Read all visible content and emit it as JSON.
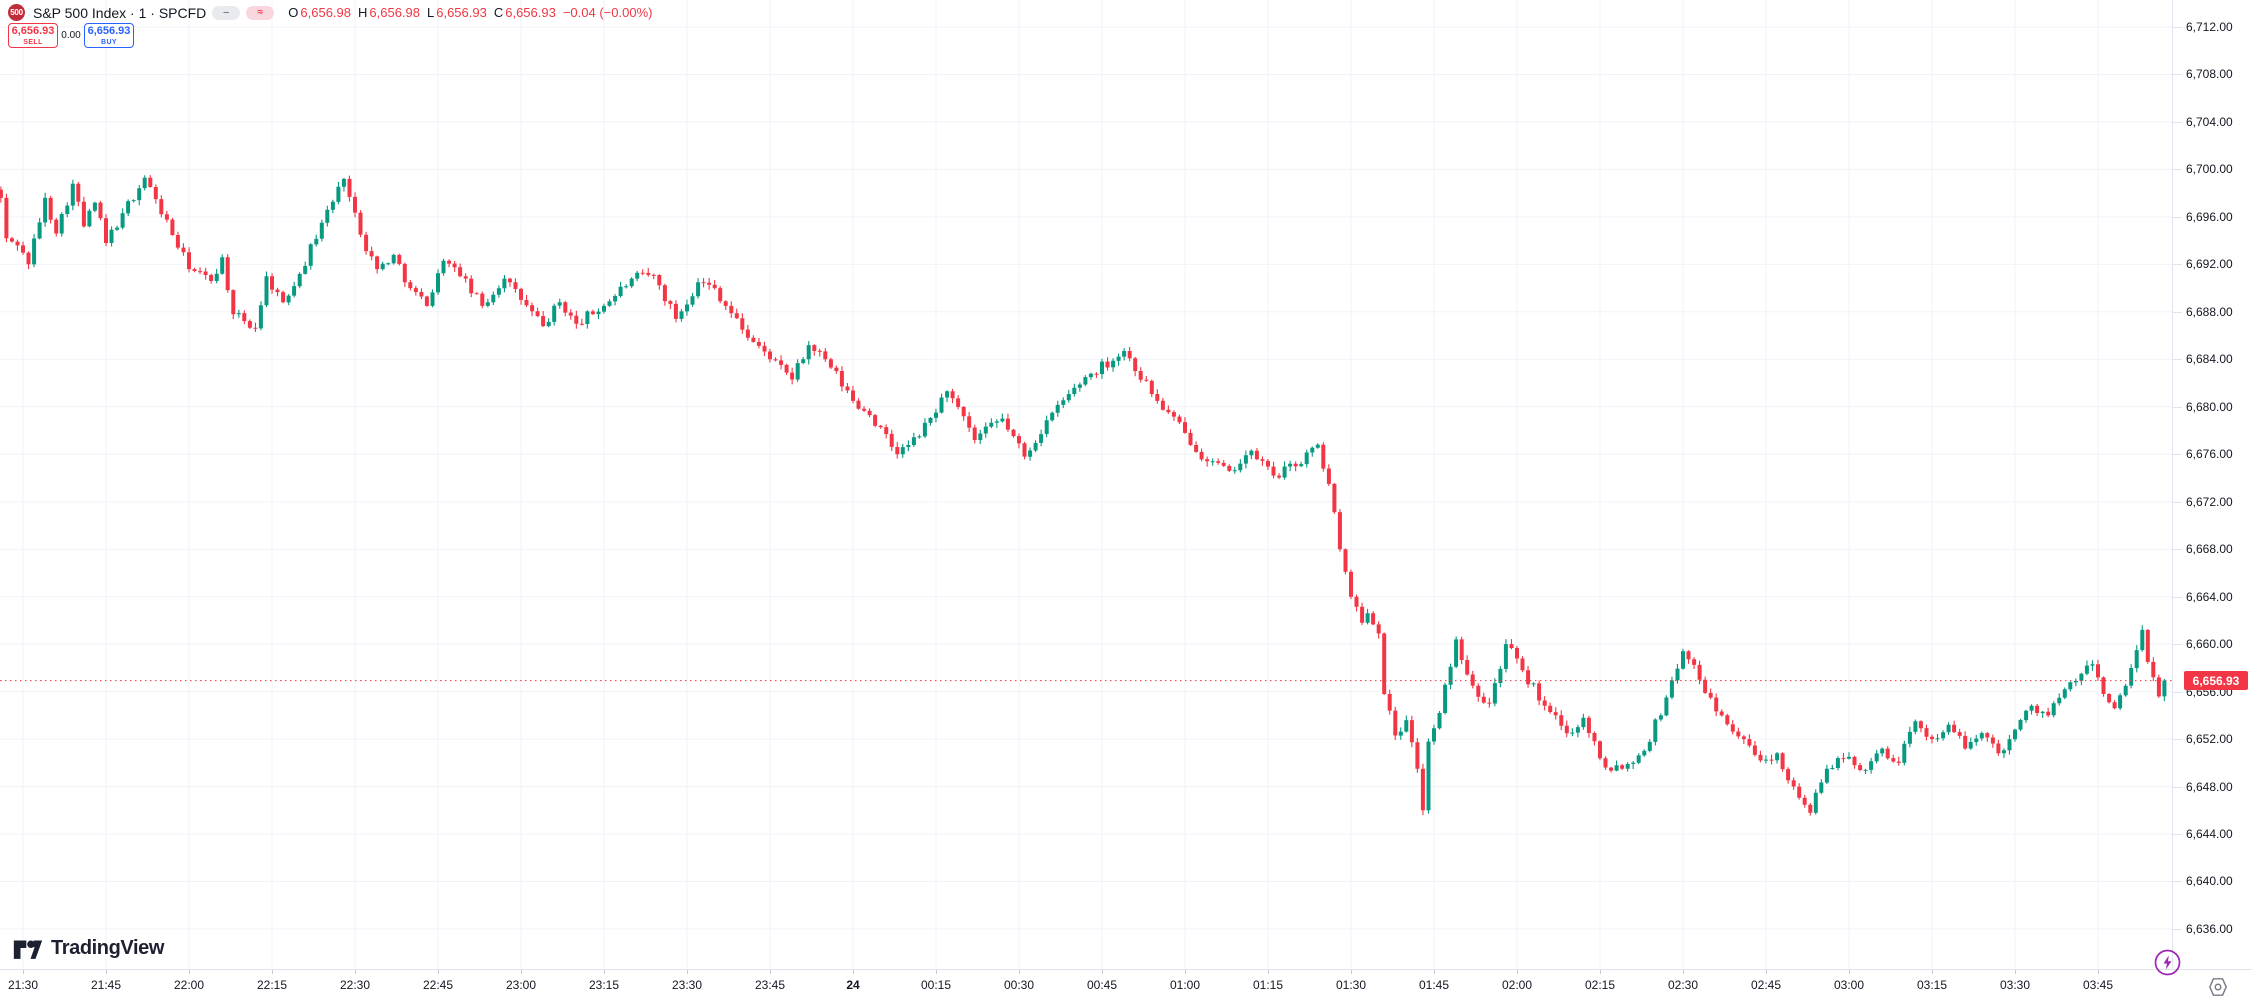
{
  "header": {
    "symbol_badge": "500",
    "title": "S&P 500 Index · 1 · SPCFD",
    "chips": [
      {
        "name": "dash-chip",
        "label": "‒"
      },
      {
        "name": "approx-chip",
        "label": "≈"
      }
    ],
    "ohlc": [
      {
        "label": "O",
        "value": "6,656.98"
      },
      {
        "label": "H",
        "value": "6,656.98"
      },
      {
        "label": "L",
        "value": "6,656.93"
      },
      {
        "label": "C",
        "value": "6,656.93"
      }
    ],
    "change": "−0.04 (−0.00%)"
  },
  "trade_panel": {
    "sell_price": "6,656.93",
    "sell_label": "SELL",
    "spread": "0.00",
    "buy_price": "6,656.93",
    "buy_label": "BUY"
  },
  "watermark": {
    "brand": "TradingView"
  },
  "colors": {
    "up": "#089981",
    "down": "#f23645",
    "buy_blue": "#2962ff",
    "sell_red": "#f23645",
    "grid": "#f0f3fa",
    "axis_border": "#e0e3eb",
    "text": "#131722",
    "muted": "#787b86",
    "badge_red": "#bf2d3a",
    "lightning_purple": "#9c27b0",
    "last_price_bg": "#f23645"
  },
  "chart_data": {
    "type": "candlestick",
    "symbol": "SPCFD",
    "interval_minutes": 1,
    "title": "S&P 500 Index 1-minute candles",
    "last_price": 6656.93,
    "last_price_label": "6,656.93",
    "first_open": 6698.3,
    "candle_count": 392,
    "grid": true,
    "price_axis": {
      "tick_step": 4,
      "ticks": [
        6636,
        6640,
        6644,
        6648,
        6652,
        6656,
        6660,
        6664,
        6668,
        6672,
        6676,
        6680,
        6684,
        6688,
        6692,
        6696,
        6700,
        6704,
        6708,
        6712
      ],
      "visible_range": [
        6633.7,
        6714.3
      ]
    },
    "time_axis": {
      "start_time": "21:26",
      "end_time": "03:57",
      "labels": [
        {
          "m": 4,
          "t": "21:30"
        },
        {
          "m": 19,
          "t": "21:45"
        },
        {
          "m": 34,
          "t": "22:00"
        },
        {
          "m": 49,
          "t": "22:15"
        },
        {
          "m": 64,
          "t": "22:30"
        },
        {
          "m": 79,
          "t": "22:45"
        },
        {
          "m": 94,
          "t": "23:00"
        },
        {
          "m": 109,
          "t": "23:15"
        },
        {
          "m": 124,
          "t": "23:30"
        },
        {
          "m": 139,
          "t": "23:45"
        },
        {
          "m": 154,
          "t": "24",
          "bold": true
        },
        {
          "m": 169,
          "t": "00:15"
        },
        {
          "m": 184,
          "t": "00:30"
        },
        {
          "m": 199,
          "t": "00:45"
        },
        {
          "m": 214,
          "t": "01:00"
        },
        {
          "m": 229,
          "t": "01:15"
        },
        {
          "m": 244,
          "t": "01:30"
        },
        {
          "m": 259,
          "t": "01:45"
        },
        {
          "m": 274,
          "t": "02:00"
        },
        {
          "m": 289,
          "t": "02:15"
        },
        {
          "m": 304,
          "t": "02:30"
        },
        {
          "m": 319,
          "t": "02:45"
        },
        {
          "m": 334,
          "t": "03:00"
        },
        {
          "m": 349,
          "t": "03:15"
        },
        {
          "m": 364,
          "t": "03:30"
        },
        {
          "m": 379,
          "t": "03:45"
        }
      ]
    },
    "waypoints": [
      [
        0,
        6697.6
      ],
      [
        1,
        6694.2
      ],
      [
        3,
        6693.6
      ],
      [
        5,
        6692.0
      ],
      [
        8,
        6697.6
      ],
      [
        10,
        6694.6
      ],
      [
        13,
        6698.8
      ],
      [
        15,
        6695.2
      ],
      [
        17,
        6697.2
      ],
      [
        19,
        6693.8
      ],
      [
        22,
        6696.3
      ],
      [
        26,
        6699.3
      ],
      [
        28,
        6697.5
      ],
      [
        34,
        6691.6
      ],
      [
        38,
        6690.6
      ],
      [
        40,
        6692.6
      ],
      [
        42,
        6687.8
      ],
      [
        46,
        6686.6
      ],
      [
        48,
        6691.0
      ],
      [
        51,
        6688.8
      ],
      [
        54,
        6691.2
      ],
      [
        58,
        6695.5
      ],
      [
        62,
        6699.2
      ],
      [
        65,
        6694.5
      ],
      [
        68,
        6691.6
      ],
      [
        71,
        6692.8
      ],
      [
        74,
        6690.0
      ],
      [
        77,
        6688.5
      ],
      [
        80,
        6692.3
      ],
      [
        83,
        6691.0
      ],
      [
        87,
        6688.5
      ],
      [
        91,
        6690.8
      ],
      [
        94,
        6689.0
      ],
      [
        98,
        6686.8
      ],
      [
        101,
        6688.8
      ],
      [
        104,
        6687.0
      ],
      [
        109,
        6688.5
      ],
      [
        114,
        6690.8
      ],
      [
        118,
        6691.1
      ],
      [
        122,
        6687.4
      ],
      [
        126,
        6690.5
      ],
      [
        129,
        6690.0
      ],
      [
        134,
        6686.5
      ],
      [
        139,
        6684.0
      ],
      [
        143,
        6682.3
      ],
      [
        146,
        6685.2
      ],
      [
        149,
        6684.0
      ],
      [
        154,
        6680.5
      ],
      [
        157,
        6679.3
      ],
      [
        162,
        6676.0
      ],
      [
        166,
        6677.5
      ],
      [
        171,
        6681.3
      ],
      [
        176,
        6677.2
      ],
      [
        181,
        6679.0
      ],
      [
        185,
        6675.8
      ],
      [
        190,
        6679.5
      ],
      [
        196,
        6682.5
      ],
      [
        203,
        6684.7
      ],
      [
        209,
        6680.5
      ],
      [
        214,
        6677.8
      ],
      [
        218,
        6675.4
      ],
      [
        222,
        6674.6
      ],
      [
        226,
        6676.3
      ],
      [
        230,
        6674.2
      ],
      [
        234,
        6675.0
      ],
      [
        238,
        6676.8
      ],
      [
        240,
        6673.5
      ],
      [
        242,
        6668.0
      ],
      [
        244,
        6664.0
      ],
      [
        246,
        6661.8
      ],
      [
        247,
        6662.6
      ],
      [
        249,
        6660.9
      ],
      [
        250,
        6655.8
      ],
      [
        252,
        6652.3
      ],
      [
        254,
        6653.6
      ],
      [
        256,
        6649.5
      ],
      [
        257,
        6646.0
      ],
      [
        258,
        6651.8
      ],
      [
        260,
        6654.2
      ],
      [
        263,
        6660.4
      ],
      [
        266,
        6656.5
      ],
      [
        269,
        6655.0
      ],
      [
        272,
        6660.0
      ],
      [
        275,
        6657.8
      ],
      [
        279,
        6654.8
      ],
      [
        283,
        6652.5
      ],
      [
        286,
        6653.8
      ],
      [
        290,
        6649.6
      ],
      [
        294,
        6649.9
      ],
      [
        297,
        6651.0
      ],
      [
        301,
        6655.5
      ],
      [
        304,
        6659.4
      ],
      [
        307,
        6657.0
      ],
      [
        311,
        6654.0
      ],
      [
        315,
        6652.0
      ],
      [
        318,
        6650.2
      ],
      [
        321,
        6650.8
      ],
      [
        324,
        6648.0
      ],
      [
        327,
        6645.8
      ],
      [
        330,
        6649.5
      ],
      [
        334,
        6650.5
      ],
      [
        337,
        6649.4
      ],
      [
        340,
        6651.2
      ],
      [
        343,
        6650.0
      ],
      [
        346,
        6653.5
      ],
      [
        349,
        6652.0
      ],
      [
        352,
        6653.2
      ],
      [
        355,
        6651.2
      ],
      [
        358,
        6652.5
      ],
      [
        361,
        6650.8
      ],
      [
        364,
        6652.8
      ],
      [
        367,
        6654.8
      ],
      [
        370,
        6654.0
      ],
      [
        373,
        6656.2
      ],
      [
        376,
        6657.5
      ],
      [
        378,
        6658.3
      ],
      [
        380,
        6655.8
      ],
      [
        382,
        6654.6
      ],
      [
        384,
        6656.5
      ],
      [
        386,
        6659.5
      ],
      [
        387,
        6661.2
      ],
      [
        388,
        6658.5
      ],
      [
        389,
        6657.2
      ],
      [
        390,
        6655.6
      ],
      [
        391,
        6656.93
      ]
    ]
  }
}
